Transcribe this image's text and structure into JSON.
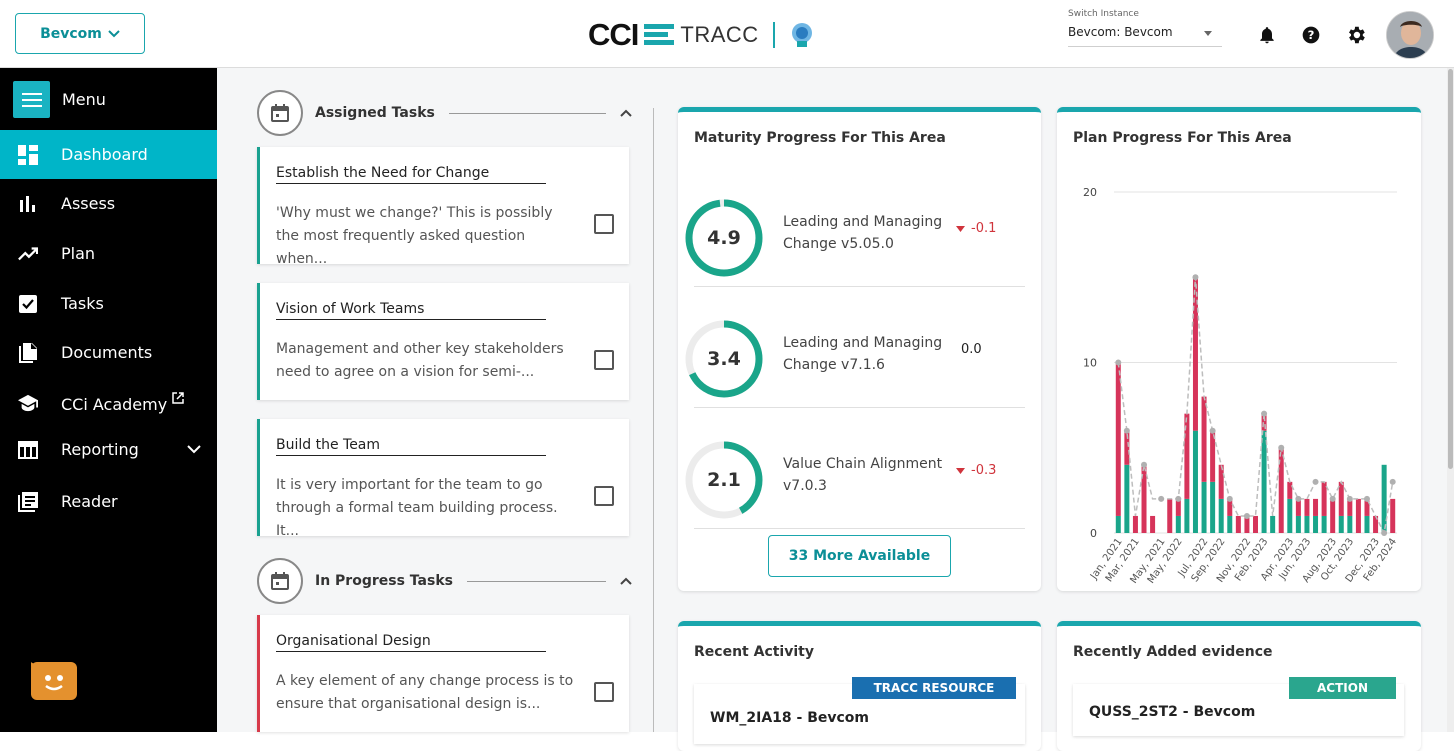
{
  "topbar": {
    "company": "Bevcom",
    "logo_main": "CCI",
    "logo_product": "TRACC",
    "instance_label": "Switch Instance",
    "instance_value": "Bevcom: Bevcom"
  },
  "sidebar": {
    "menu_label": "Menu",
    "items": [
      {
        "label": "Dashboard",
        "icon": "dashboard-icon",
        "active": true
      },
      {
        "label": "Assess",
        "icon": "bar-chart-icon"
      },
      {
        "label": "Plan",
        "icon": "trending-up-icon"
      },
      {
        "label": "Tasks",
        "icon": "checkbox-icon"
      },
      {
        "label": "Documents",
        "icon": "documents-icon"
      },
      {
        "label": "CCi Academy",
        "icon": "graduation-cap-icon"
      },
      {
        "label": "Reporting",
        "icon": "table-icon"
      },
      {
        "label": "Reader",
        "icon": "reader-icon"
      }
    ]
  },
  "assigned": {
    "title": "Assigned Tasks",
    "tasks": [
      {
        "title": "Establish the Need for Change",
        "desc": "'Why must we change?' This is possibly the most frequently asked question when..."
      },
      {
        "title": "Vision of Work Teams",
        "desc": "Management and other key stakeholders need to agree on a vision for semi-..."
      },
      {
        "title": "Build the Team",
        "desc": "It is very important for the team to go through a formal team building process. It..."
      }
    ]
  },
  "in_progress": {
    "title": "In Progress Tasks",
    "tasks": [
      {
        "title": "Organisational Design",
        "desc": "A key element of any change process is to ensure that organisational design is..."
      }
    ]
  },
  "maturity": {
    "title": "Maturity Progress For This Area",
    "items": [
      {
        "score": "4.9",
        "fraction": 0.98,
        "name": "Leading and Managing Change v5.05.0",
        "delta": "-0.1",
        "trend": "down"
      },
      {
        "score": "3.4",
        "fraction": 0.68,
        "name": "Leading and Managing Change v7.1.6",
        "delta": "0.0",
        "trend": "flat"
      },
      {
        "score": "2.1",
        "fraction": 0.42,
        "name": "Value Chain Alignment v7.0.3",
        "delta": "-0.3",
        "trend": "down"
      }
    ],
    "more_button": "33 More Available"
  },
  "plan_progress": {
    "title": "Plan Progress For This Area"
  },
  "chart_data": {
    "type": "bar",
    "stacked": true,
    "title": "Plan Progress For This Area",
    "ylim": [
      0,
      20
    ],
    "yticks": [
      0,
      10,
      20
    ],
    "tick_labels": [
      "Jan, 2021",
      "Mar, 2021",
      "May, 2021",
      "May, 2022",
      "Jul, 2022",
      "Sep, 2022",
      "Nov, 2022",
      "Feb, 2023",
      "Apr, 2023",
      "Jun, 2023",
      "Aug, 2023",
      "Oct, 2023",
      "Dec, 2023",
      "Feb, 2024"
    ],
    "colors": {
      "complete": "#1aa58a",
      "open": "#d6345a",
      "line": "#bdbdbd"
    },
    "series": [
      {
        "values": [
          1,
          4,
          0,
          0,
          0,
          0,
          0,
          1,
          2,
          6,
          3,
          3,
          2,
          1,
          0,
          0,
          0,
          6,
          1,
          0,
          2,
          1,
          1,
          1,
          1,
          0,
          1,
          1,
          0,
          1,
          0,
          4,
          0
        ]
      },
      {
        "values": [
          9,
          2,
          1,
          4,
          1,
          0,
          2,
          1,
          5,
          9,
          5,
          3,
          2,
          1,
          1,
          1,
          1,
          1,
          0,
          5,
          1,
          1,
          1,
          1,
          2,
          2,
          2,
          1,
          2,
          1,
          1,
          0,
          2
        ]
      }
    ],
    "line": [
      10,
      6,
      1,
      4,
      2,
      2,
      2,
      2,
      7,
      15,
      8,
      6,
      4,
      2,
      1,
      1,
      1,
      7,
      1,
      5,
      3,
      2,
      2,
      3,
      3,
      2,
      3,
      2,
      2,
      2,
      1,
      0,
      3
    ]
  },
  "recent_activity": {
    "title": "Recent Activity",
    "badge": "TRACC RESOURCE",
    "badge_color": "#1a6fb0",
    "item": "WM_2IA18 - Bevcom"
  },
  "evidence": {
    "title": "Recently Added evidence",
    "badge": "ACTION",
    "badge_color": "#2aa68e",
    "item": "QUSS_2ST2 - Bevcom"
  }
}
